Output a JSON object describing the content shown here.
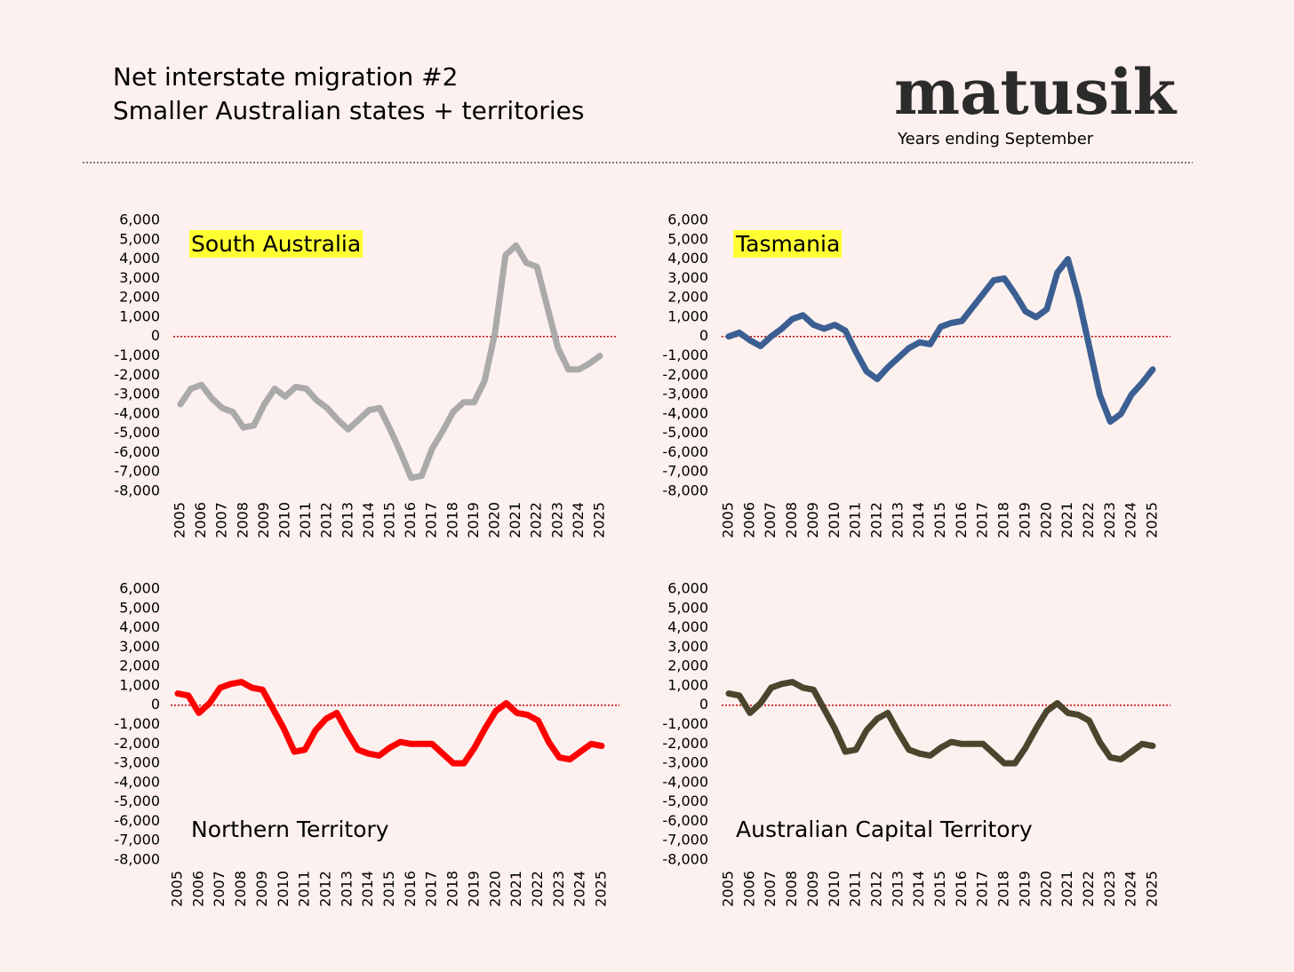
{
  "title": "Net interstate migration #2",
  "subtitle": "Smaller Australian states + territories",
  "brand": "matusik",
  "note": "Years ending September",
  "chart_data": [
    {
      "type": "line",
      "title": "South Australia",
      "title_highlight": "#ffff33",
      "x": [
        2005,
        2005.5,
        2006,
        2006.5,
        2007,
        2007.5,
        2008,
        2008.5,
        2009,
        2009.5,
        2010,
        2010.5,
        2011,
        2011.5,
        2012,
        2012.5,
        2013,
        2013.5,
        2014,
        2014.5,
        2015,
        2015.5,
        2016,
        2016.5,
        2017,
        2017.5,
        2018,
        2018.5,
        2019,
        2019.5,
        2020,
        2020.5,
        2021,
        2021.5,
        2022,
        2022.5,
        2023,
        2023.5,
        2024,
        2024.5,
        2025
      ],
      "series": [
        {
          "color": "#aaaaaa",
          "values": [
            -3500,
            -2700,
            -2500,
            -3200,
            -3700,
            -3900,
            -4700,
            -4600,
            -3500,
            -2700,
            -3100,
            -2600,
            -2700,
            -3300,
            -3700,
            -4300,
            -4800,
            -4300,
            -3800,
            -3700,
            -4800,
            -6000,
            -7300,
            -7200,
            -5800,
            -4900,
            -3900,
            -3400,
            -3400,
            -2300,
            200,
            4200,
            4700,
            3800,
            3600,
            1500,
            -600,
            -1700,
            -1700,
            -1400,
            -1000
          ]
        }
      ],
      "xlim": [
        2005,
        2025
      ],
      "xticks": [
        2005,
        2006,
        2007,
        2008,
        2009,
        2010,
        2011,
        2012,
        2013,
        2014,
        2015,
        2016,
        2017,
        2018,
        2019,
        2020,
        2021,
        2022,
        2023,
        2024,
        2025
      ],
      "ylim": [
        -8000,
        6000
      ],
      "yticks": [
        {
          "value": -8000,
          "label": "-8,000"
        },
        {
          "value": -7000,
          "label": "-7,000"
        },
        {
          "value": -6000,
          "label": "-6,000"
        },
        {
          "value": -5000,
          "label": "-5,000"
        },
        {
          "value": -4000,
          "label": "-4,000"
        },
        {
          "value": -3000,
          "label": "-3,000"
        },
        {
          "value": -2000,
          "label": "-2,000"
        },
        {
          "value": -1000,
          "label": "-1,000"
        },
        0,
        {
          "value": 1000,
          "label": "1,000"
        },
        {
          "value": 2000,
          "label": "2,000"
        },
        {
          "value": 3000,
          "label": "3,000"
        },
        {
          "value": 4000,
          "label": "4,000"
        },
        {
          "value": 5000,
          "label": "5,000"
        },
        {
          "value": 6000,
          "label": "6,000"
        }
      ],
      "grid": false
    },
    {
      "type": "line",
      "title": "Tasmania",
      "title_highlight": "#ffff33",
      "x": [
        2005,
        2005.5,
        2006,
        2006.5,
        2007,
        2007.5,
        2008,
        2008.5,
        2009,
        2009.5,
        2010,
        2010.5,
        2011,
        2011.5,
        2012,
        2012.5,
        2013,
        2013.5,
        2014,
        2014.5,
        2015,
        2015.5,
        2016,
        2016.5,
        2017,
        2017.5,
        2018,
        2018.5,
        2019,
        2019.5,
        2020,
        2020.5,
        2021,
        2021.5,
        2022,
        2022.5,
        2023,
        2023.5,
        2024,
        2024.5,
        2025
      ],
      "series": [
        {
          "color": "#3b5f92",
          "values": [
            0,
            200,
            -200,
            -500,
            0,
            400,
            900,
            1100,
            600,
            400,
            600,
            300,
            -800,
            -1800,
            -2200,
            -1600,
            -1100,
            -600,
            -300,
            -400,
            500,
            700,
            800,
            1500,
            2200,
            2900,
            3000,
            2200,
            1300,
            1000,
            1400,
            3300,
            4000,
            2000,
            -500,
            -3000,
            -4400,
            -4000,
            -3000,
            -2400,
            -1700
          ]
        }
      ],
      "xlim": [
        2005,
        2025
      ],
      "xticks": [
        2005,
        2006,
        2007,
        2008,
        2009,
        2010,
        2011,
        2012,
        2013,
        2014,
        2015,
        2016,
        2017,
        2018,
        2019,
        2020,
        2021,
        2022,
        2023,
        2024,
        2025
      ],
      "ylim": [
        -8000,
        6000
      ],
      "yticks": [
        {
          "value": -8000,
          "label": "-8,000"
        },
        {
          "value": -7000,
          "label": "-7,000"
        },
        {
          "value": -6000,
          "label": "-6,000"
        },
        {
          "value": -5000,
          "label": "-5,000"
        },
        {
          "value": -4000,
          "label": "-4,000"
        },
        {
          "value": -3000,
          "label": "-3,000"
        },
        {
          "value": -2000,
          "label": "-2,000"
        },
        {
          "value": -1000,
          "label": "-1,000"
        },
        0,
        {
          "value": 1000,
          "label": "1,000"
        },
        {
          "value": 2000,
          "label": "2,000"
        },
        {
          "value": 3000,
          "label": "3,000"
        },
        {
          "value": 4000,
          "label": "4,000"
        },
        {
          "value": 5000,
          "label": "5,000"
        },
        {
          "value": 6000,
          "label": "6,000"
        }
      ],
      "grid": false
    },
    {
      "type": "line",
      "title": "Northern Territory",
      "x": [
        2005,
        2005.5,
        2006,
        2006.5,
        2007,
        2007.5,
        2008,
        2008.5,
        2009,
        2009.5,
        2010,
        2010.5,
        2011,
        2011.5,
        2012,
        2012.5,
        2013,
        2013.5,
        2014,
        2014.5,
        2015,
        2015.5,
        2016,
        2016.5,
        2017,
        2017.5,
        2018,
        2018.5,
        2019,
        2019.5,
        2020,
        2020.5,
        2021,
        2021.5,
        2022,
        2022.5,
        2023,
        2023.5,
        2024,
        2024.5,
        2025
      ],
      "series": [
        {
          "color": "#ff0000",
          "values": [
            600,
            500,
            -400,
            100,
            900,
            1100,
            1200,
            900,
            800,
            -200,
            -1200,
            -2400,
            -2300,
            -1300,
            -700,
            -400,
            -1400,
            -2300,
            -2500,
            -2600,
            -2200,
            -1900,
            -2000,
            -2000,
            -2000,
            -2500,
            -3000,
            -3000,
            -2200,
            -1200,
            -300,
            100,
            -400,
            -500,
            -800,
            -1900,
            -2700,
            -2800,
            -2400,
            -2000,
            -2100
          ]
        }
      ],
      "xlim": [
        2005,
        2025
      ],
      "xticks": [
        2005,
        2006,
        2007,
        2008,
        2009,
        2010,
        2011,
        2012,
        2013,
        2014,
        2015,
        2016,
        2017,
        2018,
        2019,
        2020,
        2021,
        2022,
        2023,
        2024,
        2025
      ],
      "ylim": [
        -8000,
        6000
      ],
      "yticks": [
        {
          "value": -8000,
          "label": "-8,000"
        },
        {
          "value": -7000,
          "label": "-7,000"
        },
        {
          "value": -6000,
          "label": "-6,000"
        },
        {
          "value": -5000,
          "label": "-5,000"
        },
        {
          "value": -4000,
          "label": "-4,000"
        },
        {
          "value": -3000,
          "label": "-3,000"
        },
        {
          "value": -2000,
          "label": "-2,000"
        },
        {
          "value": -1000,
          "label": "-1,000"
        },
        0,
        {
          "value": 1000,
          "label": "1,000"
        },
        {
          "value": 2000,
          "label": "2,000"
        },
        {
          "value": 3000,
          "label": "3,000"
        },
        {
          "value": 4000,
          "label": "4,000"
        },
        {
          "value": 5000,
          "label": "5,000"
        },
        {
          "value": 6000,
          "label": "6,000"
        }
      ],
      "grid": false
    },
    {
      "type": "line",
      "title": "Australian Capital Territory",
      "x": [
        2005,
        2005.5,
        2006,
        2006.5,
        2007,
        2007.5,
        2008,
        2008.5,
        2009,
        2009.5,
        2010,
        2010.5,
        2011,
        2011.5,
        2012,
        2012.5,
        2013,
        2013.5,
        2014,
        2014.5,
        2015,
        2015.5,
        2016,
        2016.5,
        2017,
        2017.5,
        2018,
        2018.5,
        2019,
        2019.5,
        2020,
        2020.5,
        2021,
        2021.5,
        2022,
        2022.5,
        2023,
        2023.5,
        2024,
        2024.5,
        2025
      ],
      "series": [
        {
          "color": "#4a452c",
          "values": [
            600,
            500,
            -400,
            100,
            900,
            1100,
            1200,
            900,
            800,
            -200,
            -1200,
            -2400,
            -2300,
            -1300,
            -700,
            -400,
            -1400,
            -2300,
            -2500,
            -2600,
            -2200,
            -1900,
            -2000,
            -2000,
            -2000,
            -2500,
            -3000,
            -3000,
            -2200,
            -1200,
            -300,
            100,
            -400,
            -500,
            -800,
            -1900,
            -2700,
            -2800,
            -2400,
            -2000,
            -2100
          ]
        }
      ],
      "xlim": [
        2005,
        2025
      ],
      "xticks": [
        2005,
        2006,
        2007,
        2008,
        2009,
        2010,
        2011,
        2012,
        2013,
        2014,
        2015,
        2016,
        2017,
        2018,
        2019,
        2020,
        2021,
        2022,
        2023,
        2024,
        2025
      ],
      "ylim": [
        -8000,
        6000
      ],
      "yticks": [
        {
          "value": -8000,
          "label": "-8,000"
        },
        {
          "value": -7000,
          "label": "-7,000"
        },
        {
          "value": -6000,
          "label": "-6,000"
        },
        {
          "value": -5000,
          "label": "-5,000"
        },
        {
          "value": -4000,
          "label": "-4,000"
        },
        {
          "value": -3000,
          "label": "-3,000"
        },
        {
          "value": -2000,
          "label": "-2,000"
        },
        {
          "value": -1000,
          "label": "-1,000"
        },
        0,
        {
          "value": 1000,
          "label": "1,000"
        },
        {
          "value": 2000,
          "label": "2,000"
        },
        {
          "value": 3000,
          "label": "3,000"
        },
        {
          "value": 4000,
          "label": "4,000"
        },
        {
          "value": 5000,
          "label": "5,000"
        },
        {
          "value": 6000,
          "label": "6,000"
        }
      ],
      "grid": false
    }
  ]
}
